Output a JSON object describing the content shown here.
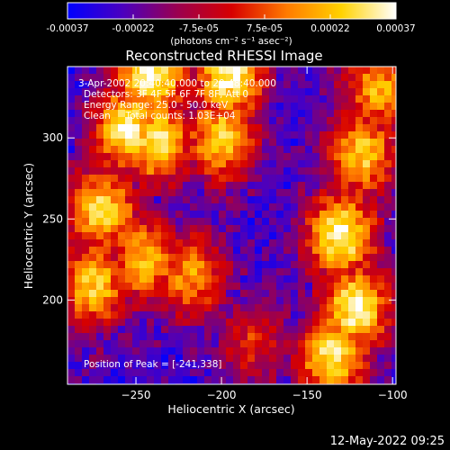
{
  "chart_data": {
    "type": "heatmap",
    "title": "Reconstructed RHESSI Image",
    "xlabel": "Heliocentric X (arcsec)",
    "ylabel": "Heliocentric Y (arcsec)",
    "xlim": [
      -290,
      -98
    ],
    "ylim": [
      148,
      344
    ],
    "x_ticks": [
      -250,
      -200,
      -150,
      -100
    ],
    "y_ticks": [
      200,
      250,
      300
    ],
    "colorbar": {
      "unit_label": "(photons cm⁻² s⁻¹ asec⁻²)",
      "range": [
        -0.00037,
        0.00037
      ],
      "tick_labels": [
        "-0.00037",
        "-0.00022",
        "-7.5e-05",
        "7.5e-05",
        "0.00022",
        "0.00037"
      ],
      "colors": [
        "#0000ff",
        "#4a00c0",
        "#9a0050",
        "#d70000",
        "#ff7a00",
        "#ffd200",
        "#ffffff"
      ]
    },
    "annotations": [
      "3-Apr-2002 20:40:40.000 to 20:48:40.000",
      "Detectors: 3F 4F 5F 6F 7F 8F, Att 0",
      "Energy Range: 25.0 - 50.0 keV",
      "Clean     Total counts: 1.03E+04"
    ],
    "peak_label": "Position of Peak = [-241,338]",
    "peak_position": [
      -241,
      338
    ],
    "bright_regions": [
      {
        "x": -255,
        "y": 305,
        "level": 0.95
      },
      {
        "x": -238,
        "y": 298,
        "level": 0.9
      },
      {
        "x": -241,
        "y": 338,
        "level": 1.0
      },
      {
        "x": -195,
        "y": 338,
        "level": 0.95
      },
      {
        "x": -200,
        "y": 300,
        "level": 0.8
      },
      {
        "x": -270,
        "y": 255,
        "level": 0.85
      },
      {
        "x": -275,
        "y": 210,
        "level": 0.8
      },
      {
        "x": -245,
        "y": 225,
        "level": 0.75
      },
      {
        "x": -218,
        "y": 215,
        "level": 0.65
      },
      {
        "x": -130,
        "y": 240,
        "level": 0.95
      },
      {
        "x": -122,
        "y": 195,
        "level": 0.95
      },
      {
        "x": -135,
        "y": 165,
        "level": 0.9
      },
      {
        "x": -118,
        "y": 290,
        "level": 0.8
      },
      {
        "x": -108,
        "y": 330,
        "level": 0.7
      },
      {
        "x": -180,
        "y": 175,
        "level": 0.4
      }
    ]
  },
  "footer": {
    "timestamp": "12-May-2022 09:25"
  }
}
